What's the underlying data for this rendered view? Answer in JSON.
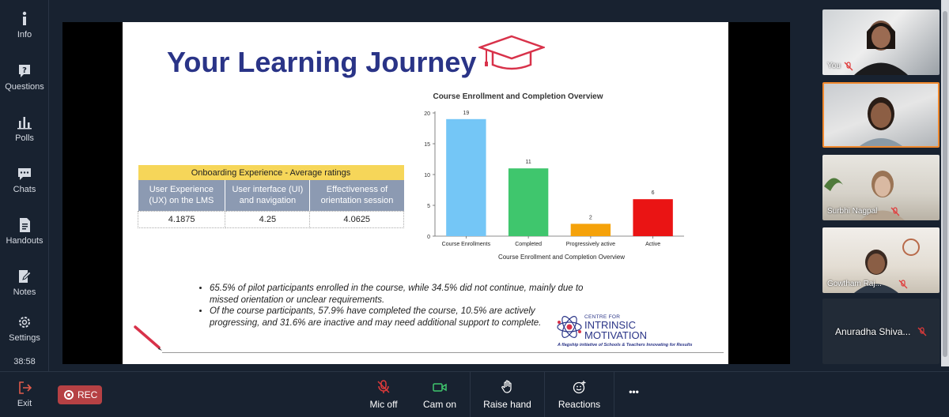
{
  "sidebar": {
    "items": [
      {
        "label": "Info"
      },
      {
        "label": "Questions"
      },
      {
        "label": "Polls"
      },
      {
        "label": "Chats"
      },
      {
        "label": "Handouts"
      },
      {
        "label": "Notes"
      },
      {
        "label": "Settings"
      }
    ],
    "timer": "38:58",
    "exit_label": "Exit"
  },
  "slide": {
    "title": "Your Learning Journey",
    "table": {
      "header": "Onboarding Experience - Average ratings",
      "columns": [
        "User Experience (UX) on the LMS",
        "User interface (UI) and navigation",
        "Effectiveness of orientation session"
      ],
      "values": [
        "4.1875",
        "4.25",
        "4.0625"
      ]
    },
    "bullets": [
      "65.5% of pilot participants enrolled in the course, while 34.5% did not continue, mainly due to missed orientation or unclear requirements.",
      "Of the course participants, 57.9% have completed the course, 10.5% are actively progressing, and 31.6% are inactive and may need additional support to complete."
    ],
    "logo": {
      "line1": "CENTRE FOR",
      "line2": "INTRINSIC",
      "line3": "MOTIVATION",
      "tagline": "A flagship initiative of Schools & Teachers Innovating for Results"
    }
  },
  "chart_data": {
    "type": "bar",
    "title": "Course Enrollment and Completion Overview",
    "xlabel": "Course Enrollment and Completion Overview",
    "ylabel": "",
    "categories": [
      "Course Enrollments",
      "Completed",
      "Progressively active",
      "Active"
    ],
    "values": [
      19,
      11,
      2,
      6
    ],
    "colors": [
      "#74c6f6",
      "#3fc66d",
      "#f5a20a",
      "#ea1414"
    ],
    "yticks": [
      0,
      5,
      10,
      15,
      20
    ],
    "ylim": [
      0,
      20
    ]
  },
  "participants": [
    {
      "name": "You"
    },
    {
      "name": ""
    },
    {
      "name": "Surbhi Nagpal"
    },
    {
      "name": "Gowtham Raj..."
    },
    {
      "name": "Anuradha Shiva..."
    }
  ],
  "bottombar": {
    "rec_label": "REC",
    "mic_label": "Mic off",
    "cam_label": "Cam on",
    "hand_label": "Raise hand",
    "reactions_label": "Reactions",
    "more_label": "•••"
  },
  "colors": {
    "background": "#182230",
    "accent": "#f0882d",
    "rec": "#b64144",
    "title": "#2a3487"
  }
}
